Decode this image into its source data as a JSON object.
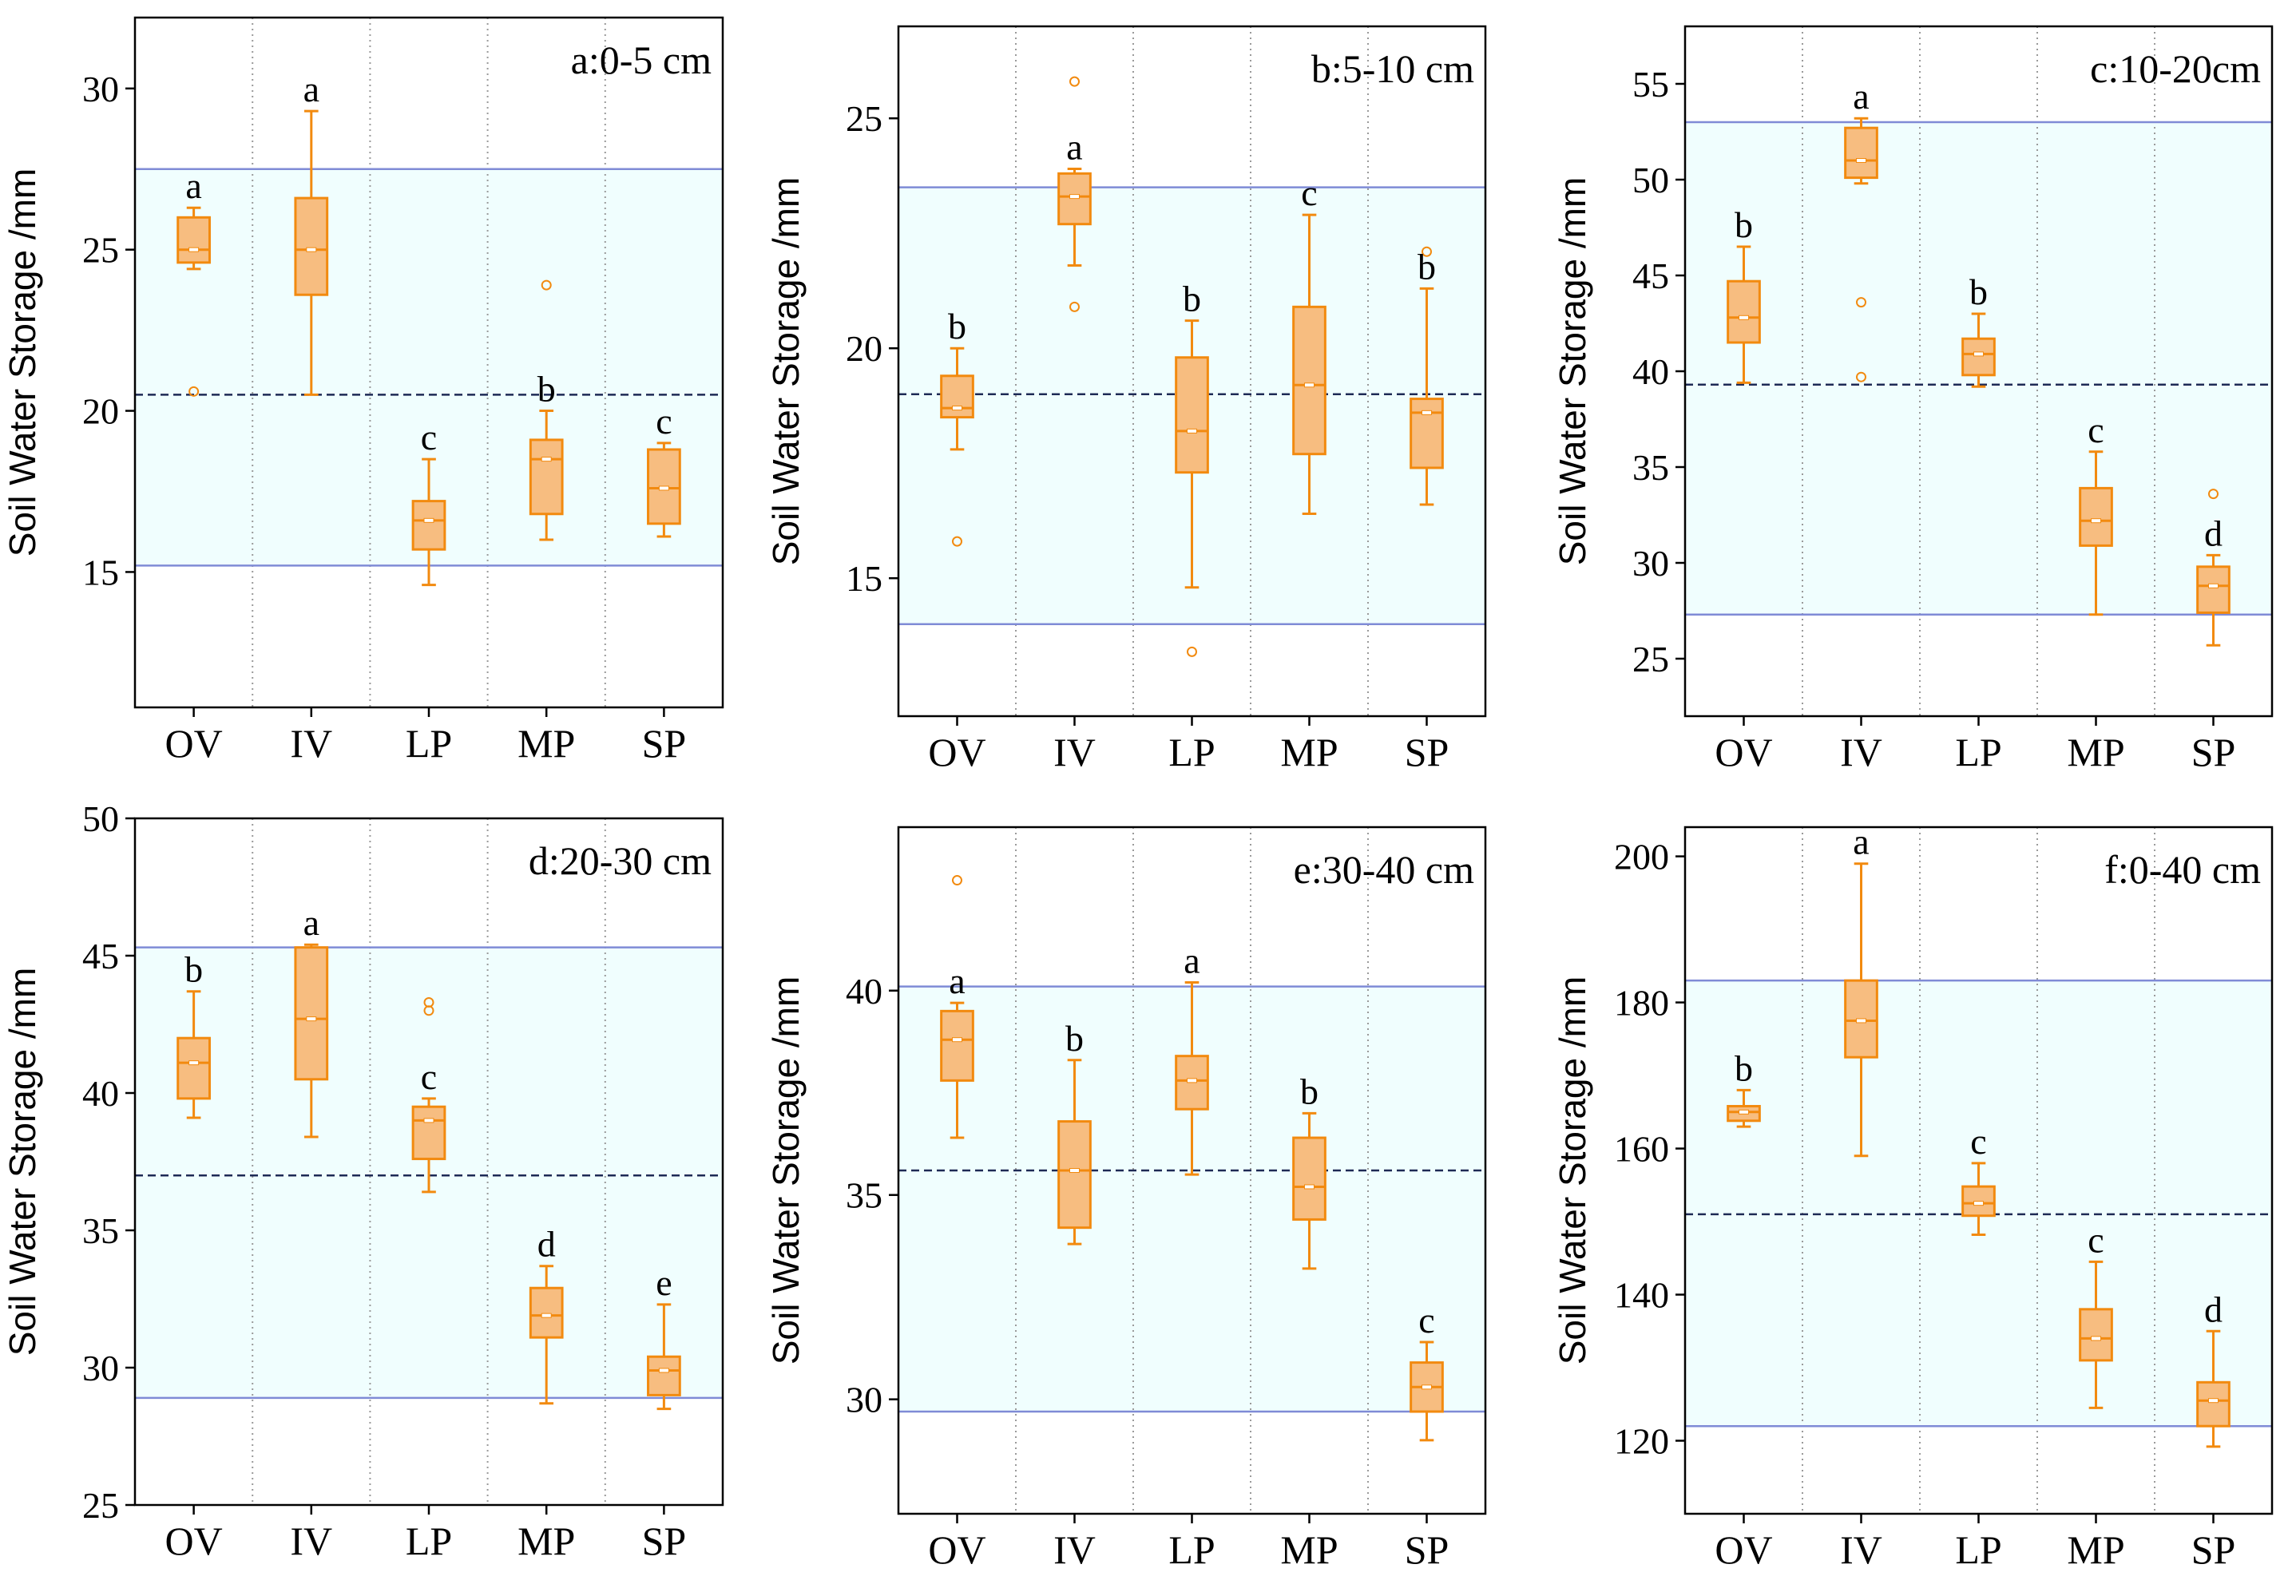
{
  "figure": {
    "y_axis_label": "Soil Water Storage /mm",
    "categories": [
      "OV",
      "IV",
      "LP",
      "MP",
      "SP"
    ],
    "colors": {
      "box_fill": "#F7BD80",
      "box_stroke": "#F28A0F",
      "band_fill": "#F0FEFE",
      "band_line": "#7F8BD6",
      "mean_line": "#1E2A55",
      "frame": "#000000",
      "divider": "#9A9A9A"
    }
  },
  "chart_data": [
    {
      "type": "box",
      "panel": "a",
      "title": "a:0-5 cm",
      "ylabel": "Soil Water Storage /mm",
      "categories": [
        "OV",
        "IV",
        "LP",
        "MP",
        "SP"
      ],
      "ylim": [
        10.8,
        32.2
      ],
      "yticks": [
        15,
        20,
        25,
        30
      ],
      "band": [
        15.2,
        27.5
      ],
      "mean_line": 20.5,
      "boxes": [
        {
          "category": "OV",
          "whisker_low": 24.4,
          "q1": 24.6,
          "median": 25.0,
          "q3": 26.0,
          "whisker_high": 26.3,
          "outliers": [
            20.6
          ],
          "letter": "a"
        },
        {
          "category": "IV",
          "whisker_low": 20.5,
          "q1": 23.6,
          "median": 25.0,
          "q3": 26.6,
          "whisker_high": 29.3,
          "outliers": [],
          "letter": "a"
        },
        {
          "category": "LP",
          "whisker_low": 14.6,
          "q1": 15.7,
          "median": 16.6,
          "q3": 17.2,
          "whisker_high": 18.5,
          "outliers": [],
          "letter": "c"
        },
        {
          "category": "MP",
          "whisker_low": 16.0,
          "q1": 16.8,
          "median": 18.5,
          "q3": 19.1,
          "whisker_high": 20.0,
          "outliers": [
            23.9
          ],
          "letter": "b"
        },
        {
          "category": "SP",
          "whisker_low": 16.1,
          "q1": 16.5,
          "median": 17.6,
          "q3": 18.8,
          "whisker_high": 19.0,
          "outliers": [],
          "letter": "c"
        }
      ]
    },
    {
      "type": "box",
      "panel": "b",
      "title": "b:5-10 cm",
      "ylabel": "Soil Water Storage /mm",
      "categories": [
        "OV",
        "IV",
        "LP",
        "MP",
        "SP"
      ],
      "ylim": [
        12.0,
        27.0
      ],
      "yticks": [
        15,
        20,
        25
      ],
      "band": [
        14.0,
        23.5
      ],
      "mean_line": 19.0,
      "boxes": [
        {
          "category": "OV",
          "whisker_low": 17.8,
          "q1": 18.5,
          "median": 18.7,
          "q3": 19.4,
          "whisker_high": 20.0,
          "outliers": [
            15.8
          ],
          "letter": "b"
        },
        {
          "category": "IV",
          "whisker_low": 21.8,
          "q1": 22.7,
          "median": 23.3,
          "q3": 23.8,
          "whisker_high": 23.9,
          "outliers": [
            20.9,
            25.8
          ],
          "letter": "a"
        },
        {
          "category": "LP",
          "whisker_low": 14.8,
          "q1": 17.3,
          "median": 18.2,
          "q3": 19.8,
          "whisker_high": 20.6,
          "outliers": [
            13.4
          ],
          "letter": "b"
        },
        {
          "category": "MP",
          "whisker_low": 16.4,
          "q1": 17.7,
          "median": 19.2,
          "q3": 20.9,
          "whisker_high": 22.9,
          "outliers": [],
          "letter": "c"
        },
        {
          "category": "SP",
          "whisker_low": 16.6,
          "q1": 17.4,
          "median": 18.6,
          "q3": 18.9,
          "whisker_high": 21.3,
          "outliers": [
            22.1
          ],
          "letter": "b"
        }
      ]
    },
    {
      "type": "box",
      "panel": "c",
      "title": "c:10-20cm",
      "ylabel": "Soil Water Storage /mm",
      "categories": [
        "OV",
        "IV",
        "LP",
        "MP",
        "SP"
      ],
      "ylim": [
        22.0,
        58.0
      ],
      "yticks": [
        25,
        30,
        35,
        40,
        45,
        50,
        55
      ],
      "band": [
        27.3,
        53.0
      ],
      "mean_line": 39.3,
      "boxes": [
        {
          "category": "OV",
          "whisker_low": 39.4,
          "q1": 41.5,
          "median": 42.8,
          "q3": 44.7,
          "whisker_high": 46.5,
          "outliers": [],
          "letter": "b"
        },
        {
          "category": "IV",
          "whisker_low": 49.8,
          "q1": 50.1,
          "median": 51.0,
          "q3": 52.7,
          "whisker_high": 53.2,
          "outliers": [
            43.6,
            39.7
          ],
          "letter": "a"
        },
        {
          "category": "LP",
          "whisker_low": 39.2,
          "q1": 39.8,
          "median": 40.9,
          "q3": 41.7,
          "whisker_high": 43.0,
          "outliers": [],
          "letter": "b"
        },
        {
          "category": "MP",
          "whisker_low": 27.3,
          "q1": 30.9,
          "median": 32.2,
          "q3": 33.9,
          "whisker_high": 35.8,
          "outliers": [],
          "letter": "c"
        },
        {
          "category": "SP",
          "whisker_low": 25.7,
          "q1": 27.4,
          "median": 28.8,
          "q3": 29.8,
          "whisker_high": 30.4,
          "outliers": [
            33.6
          ],
          "letter": "d"
        }
      ]
    },
    {
      "type": "box",
      "panel": "d",
      "title": "d:20-30 cm",
      "ylabel": "Soil Water Storage /mm",
      "categories": [
        "OV",
        "IV",
        "LP",
        "MP",
        "SP"
      ],
      "ylim": [
        25.0,
        50.0
      ],
      "yticks": [
        25,
        30,
        35,
        40,
        45,
        50
      ],
      "band": [
        28.9,
        45.3
      ],
      "mean_line": 37.0,
      "boxes": [
        {
          "category": "OV",
          "whisker_low": 39.1,
          "q1": 39.8,
          "median": 41.1,
          "q3": 42.0,
          "whisker_high": 43.7,
          "outliers": [],
          "letter": "b"
        },
        {
          "category": "IV",
          "whisker_low": 38.4,
          "q1": 40.5,
          "median": 42.7,
          "q3": 45.3,
          "whisker_high": 45.4,
          "outliers": [],
          "letter": "a"
        },
        {
          "category": "LP",
          "whisker_low": 36.4,
          "q1": 37.6,
          "median": 39.0,
          "q3": 39.5,
          "whisker_high": 39.8,
          "outliers": [
            43.0,
            43.3
          ],
          "letter": "c"
        },
        {
          "category": "MP",
          "whisker_low": 28.7,
          "q1": 31.1,
          "median": 31.9,
          "q3": 32.9,
          "whisker_high": 33.7,
          "outliers": [],
          "letter": "d"
        },
        {
          "category": "SP",
          "whisker_low": 28.5,
          "q1": 29.0,
          "median": 29.9,
          "q3": 30.4,
          "whisker_high": 32.3,
          "outliers": [],
          "letter": "e"
        }
      ]
    },
    {
      "type": "box",
      "panel": "e",
      "title": "e:30-40 cm",
      "ylabel": "Soil Water Storage /mm",
      "categories": [
        "OV",
        "IV",
        "LP",
        "MP",
        "SP"
      ],
      "ylim": [
        27.2,
        44.0
      ],
      "yticks": [
        30,
        35,
        40
      ],
      "band": [
        29.7,
        40.1
      ],
      "mean_line": 35.6,
      "boxes": [
        {
          "category": "OV",
          "whisker_low": 36.4,
          "q1": 37.8,
          "median": 38.8,
          "q3": 39.5,
          "whisker_high": 39.7,
          "outliers": [
            42.7
          ],
          "letter": "a"
        },
        {
          "category": "IV",
          "whisker_low": 33.8,
          "q1": 34.2,
          "median": 35.6,
          "q3": 36.8,
          "whisker_high": 38.3,
          "outliers": [],
          "letter": "b"
        },
        {
          "category": "LP",
          "whisker_low": 35.5,
          "q1": 37.1,
          "median": 37.8,
          "q3": 38.4,
          "whisker_high": 40.2,
          "outliers": [],
          "letter": "a"
        },
        {
          "category": "MP",
          "whisker_low": 33.2,
          "q1": 34.4,
          "median": 35.2,
          "q3": 36.4,
          "whisker_high": 37.0,
          "outliers": [],
          "letter": "b"
        },
        {
          "category": "SP",
          "whisker_low": 29.0,
          "q1": 29.7,
          "median": 30.3,
          "q3": 30.9,
          "whisker_high": 31.4,
          "outliers": [],
          "letter": "c"
        }
      ]
    },
    {
      "type": "box",
      "panel": "f",
      "title": "f:0-40 cm",
      "ylabel": "Soil Water Storage /mm",
      "categories": [
        "OV",
        "IV",
        "LP",
        "MP",
        "SP"
      ],
      "ylim": [
        110.0,
        204.0
      ],
      "yticks": [
        120,
        140,
        160,
        180,
        200
      ],
      "band": [
        122.0,
        183.0
      ],
      "mean_line": 151.0,
      "boxes": [
        {
          "category": "OV",
          "whisker_low": 163.0,
          "q1": 163.8,
          "median": 165.0,
          "q3": 165.8,
          "whisker_high": 168.0,
          "outliers": [],
          "letter": "b"
        },
        {
          "category": "IV",
          "whisker_low": 159.0,
          "q1": 172.5,
          "median": 177.5,
          "q3": 183.0,
          "whisker_high": 199.0,
          "outliers": [],
          "letter": "a"
        },
        {
          "category": "LP",
          "whisker_low": 148.2,
          "q1": 150.8,
          "median": 152.5,
          "q3": 154.8,
          "whisker_high": 158.0,
          "outliers": [],
          "letter": "c"
        },
        {
          "category": "MP",
          "whisker_low": 124.5,
          "q1": 131.0,
          "median": 134.0,
          "q3": 138.0,
          "whisker_high": 144.5,
          "outliers": [],
          "letter": "c"
        },
        {
          "category": "SP",
          "whisker_low": 119.2,
          "q1": 122.0,
          "median": 125.5,
          "q3": 128.0,
          "whisker_high": 135.0,
          "outliers": [],
          "letter": "d"
        }
      ]
    }
  ]
}
